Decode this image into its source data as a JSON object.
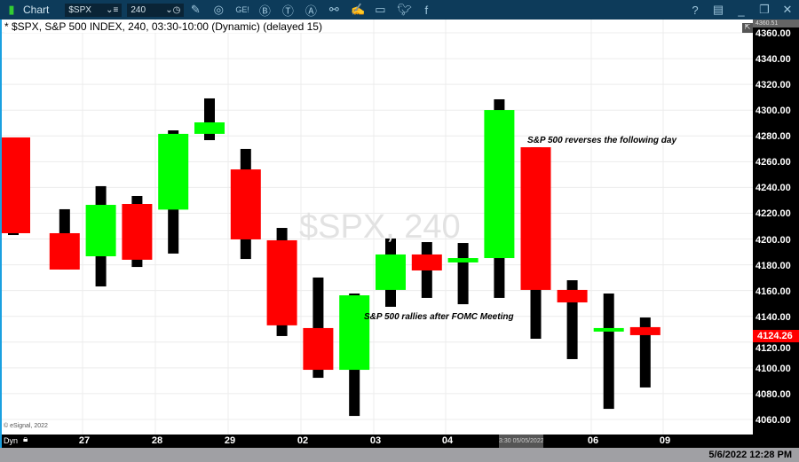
{
  "titlebar": {
    "title": "Chart",
    "symbol": "$SPX",
    "interval": "240",
    "icons": [
      "chart-window-icon",
      "pencil-icon",
      "studies-icon",
      "get-icon",
      "b-icon",
      "t-icon",
      "a-icon",
      "link-icon",
      "notes-icon",
      "comment-icon",
      "twitter-icon",
      "facebook-icon"
    ],
    "right_icons": [
      "help-icon",
      "layout-icon",
      "minimize-icon",
      "restore-icon",
      "close-icon"
    ]
  },
  "chart": {
    "header": "* $SPX, S&P 500 INDEX, 240, 03:30-10:00 (Dynamic) (delayed 15)",
    "watermark": "$SPX, 240",
    "copyright": "© eSignal, 2022",
    "annotations": [
      "S&P 500  reverses the following day",
      "S&P  500 rallies after FOMC Meeting"
    ],
    "top_price_marker": "4360.51",
    "last_price": "4124.26",
    "colors": {
      "up": "#00ff00",
      "down": "#ff0000",
      "wick": "#000000",
      "last_price_bg": "#ff0000"
    }
  },
  "chart_data": {
    "type": "candlestick",
    "ylim": [
      4050,
      4370
    ],
    "yticks": [
      "4060.00",
      "4080.00",
      "4100.00",
      "4120.00",
      "4140.00",
      "4160.00",
      "4180.00",
      "4200.00",
      "4220.00",
      "4240.00",
      "4260.00",
      "4280.00",
      "4300.00",
      "4320.00",
      "4340.00",
      "4360.00"
    ],
    "xticks": [
      "27",
      "28",
      "29",
      "02",
      "03",
      "04",
      "06",
      "09"
    ],
    "candles": [
      {
        "o": 4278.8,
        "h": 4278.8,
        "l": 4203.1,
        "c": 4204.5
      },
      {
        "o": 4204.5,
        "h": 4223.1,
        "l": 4176.3,
        "c": 4176.3
      },
      {
        "o": 4186.6,
        "h": 4241.0,
        "l": 4163.2,
        "c": 4226.5
      },
      {
        "o": 4227.2,
        "h": 4233.4,
        "l": 4178.3,
        "c": 4183.9
      },
      {
        "o": 4222.8,
        "h": 4284.3,
        "l": 4188.7,
        "c": 4281.6
      },
      {
        "o": 4281.6,
        "h": 4309.1,
        "l": 4276.7,
        "c": 4290.5
      },
      {
        "o": 4254.0,
        "h": 4269.9,
        "l": 4184.5,
        "c": 4199.7
      },
      {
        "o": 4199.0,
        "h": 4208.6,
        "l": 4124.7,
        "c": 4133.0
      },
      {
        "o": 4130.9,
        "h": 4170.1,
        "l": 4092.3,
        "c": 4098.5
      },
      {
        "o": 4098.5,
        "h": 4157.7,
        "l": 4062.7,
        "c": 4156.3
      },
      {
        "o": 4160.5,
        "h": 4200.4,
        "l": 4147.4,
        "c": 4188.0
      },
      {
        "o": 4188.0,
        "h": 4197.6,
        "l": 4154.3,
        "c": 4175.6
      },
      {
        "o": 4181.8,
        "h": 4196.9,
        "l": 4149.4,
        "c": 4185.2
      },
      {
        "o": 4185.2,
        "h": 4308.4,
        "l": 4154.3,
        "c": 4300.1
      },
      {
        "o": 4271.2,
        "h": 4271.2,
        "l": 4122.6,
        "c": 4160.5
      },
      {
        "o": 4160.5,
        "h": 4168.0,
        "l": 4106.8,
        "c": 4150.8
      },
      {
        "o": 4128.8,
        "h": 4157.7,
        "l": 4068.2,
        "c": 4130.9
      },
      {
        "o": 4131.6,
        "h": 4139.1,
        "l": 4084.8,
        "c": 4125.4
      }
    ]
  },
  "timeaxis": {
    "left_label": "Dyn",
    "cursor_label": "3:30 05/05/2022"
  },
  "status": {
    "datetime": "5/6/2022 12:28 PM"
  }
}
